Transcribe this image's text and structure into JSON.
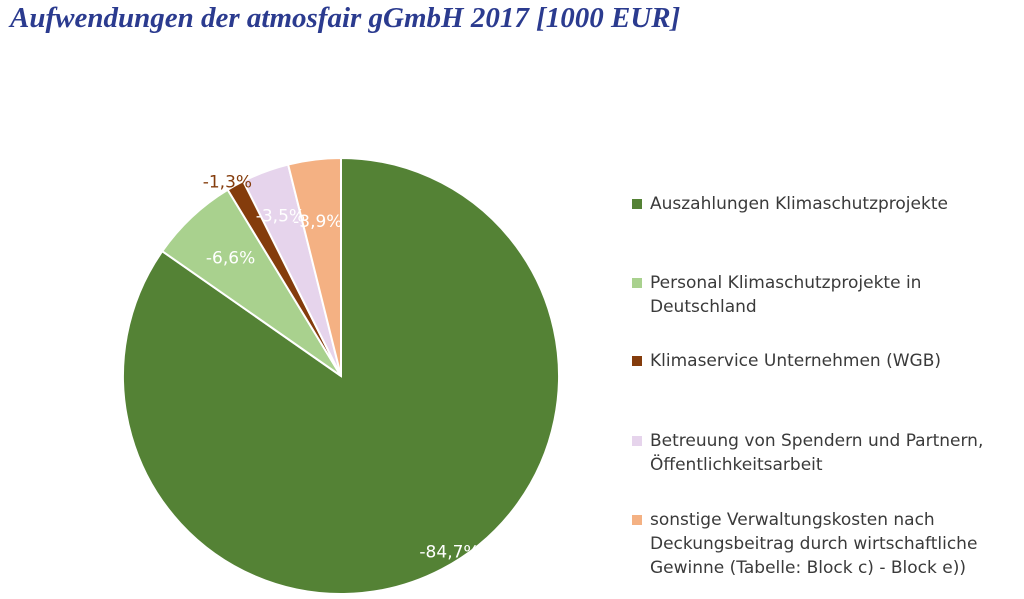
{
  "chart_data": {
    "type": "pie",
    "title": "Aufwendungen der atmosfair gGmbH 2017 [1000 EUR]",
    "legend_position": "right",
    "slices": [
      {
        "label": "Auszahlungen Klimaschutzprojekte",
        "value": 84.7,
        "data_label": "-84,7%",
        "color": "#548235",
        "label_color": "#ffffff"
      },
      {
        "label": "Personal Klimaschutzprojekte in\nDeutschland",
        "value": 6.6,
        "data_label": "-6,6%",
        "color": "#a9d18e",
        "label_color": "#ffffff"
      },
      {
        "label": "Klimaservice Unternehmen (WGB)",
        "value": 1.3,
        "data_label": "-1,3%",
        "color": "#843c0c",
        "label_color": "#843c0c"
      },
      {
        "label": "Betreuung von Spendern und Partnern,\nÖffentlichkeitsarbeit",
        "value": 3.5,
        "data_label": "-3,5%",
        "color": "#e6d4ec",
        "label_color": "#ffffff"
      },
      {
        "label": "sonstige Verwaltungskosten nach\nDeckungsbeitrag durch wirtschaftliche\nGewinne (Tabelle: Block c) - Block e))",
        "value": 3.9,
        "data_label": "-3,9%",
        "color": "#f4b183",
        "label_color": "#ffffff"
      }
    ]
  }
}
